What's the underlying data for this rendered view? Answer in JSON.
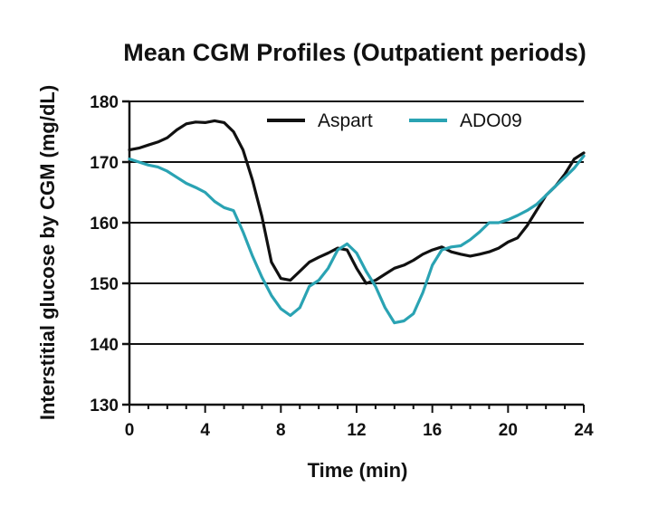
{
  "chart_data": {
    "type": "line",
    "title": "Mean CGM Profiles (Outpatient periods)",
    "xlabel": "Time (min)",
    "ylabel": "Interstitial glucose by CGM (mg/dL)",
    "xlim": [
      0,
      24
    ],
    "ylim": [
      130,
      180
    ],
    "xticks": [
      0,
      4,
      8,
      12,
      16,
      20,
      24
    ],
    "xtick_labels": [
      "0",
      "4",
      "8",
      "12",
      "16",
      "20",
      "24"
    ],
    "yticks": [
      130,
      140,
      150,
      160,
      170,
      180
    ],
    "ytick_labels": [
      "130",
      "140",
      "150",
      "160",
      "170",
      "180"
    ],
    "grid": "horizontal",
    "legend": "top-right",
    "series": [
      {
        "name": "Aspart",
        "color": "#111111",
        "x": [
          0,
          0.5,
          1,
          1.5,
          2,
          2.5,
          3,
          3.5,
          4,
          4.5,
          5,
          5.5,
          6,
          6.5,
          7,
          7.5,
          8,
          8.5,
          9,
          9.5,
          10,
          10.5,
          11,
          11.5,
          12,
          12.5,
          13,
          13.5,
          14,
          14.5,
          15,
          15.5,
          16,
          16.5,
          17,
          17.5,
          18,
          18.5,
          19,
          19.5,
          20,
          20.5,
          21,
          21.5,
          22,
          22.5,
          23,
          23.5,
          24
        ],
        "y": [
          172,
          172.3,
          172.8,
          173.3,
          174,
          175.3,
          176.3,
          176.6,
          176.5,
          176.8,
          176.5,
          175,
          172,
          167,
          161,
          153.5,
          150.8,
          150.5,
          152,
          153.5,
          154.3,
          155,
          155.8,
          155.5,
          152.5,
          150,
          150.5,
          151.5,
          152.5,
          153,
          153.8,
          154.8,
          155.5,
          156,
          155.2,
          154.8,
          154.5,
          154.8,
          155.2,
          155.8,
          156.8,
          157.5,
          159.5,
          162,
          164.5,
          166,
          168,
          170.5,
          171.5
        ]
      },
      {
        "name": "ADO09",
        "color": "#2aa3b3",
        "x": [
          0,
          0.5,
          1,
          1.5,
          2,
          2.5,
          3,
          3.5,
          4,
          4.5,
          5,
          5.5,
          6,
          6.5,
          7,
          7.5,
          8,
          8.5,
          9,
          9.5,
          10,
          10.5,
          11,
          11.5,
          12,
          12.5,
          13,
          13.5,
          14,
          14.5,
          15,
          15.5,
          16,
          16.5,
          17,
          17.5,
          18,
          18.5,
          19,
          19.5,
          20,
          20.5,
          21,
          21.5,
          22,
          22.5,
          23,
          23.5,
          24
        ],
        "y": [
          170.5,
          170,
          169.5,
          169.2,
          168.5,
          167.5,
          166.5,
          165.8,
          165,
          163.5,
          162.5,
          162,
          158.5,
          154.5,
          151,
          148,
          145.8,
          144.7,
          146,
          149.5,
          150.5,
          152.5,
          155.5,
          156.5,
          155,
          152,
          149.5,
          146,
          143.5,
          143.8,
          145,
          148.5,
          153,
          155.5,
          156,
          156.2,
          157.2,
          158.5,
          160,
          160,
          160.5,
          161.2,
          162,
          163,
          164.5,
          166,
          167.5,
          169,
          171
        ]
      }
    ]
  }
}
